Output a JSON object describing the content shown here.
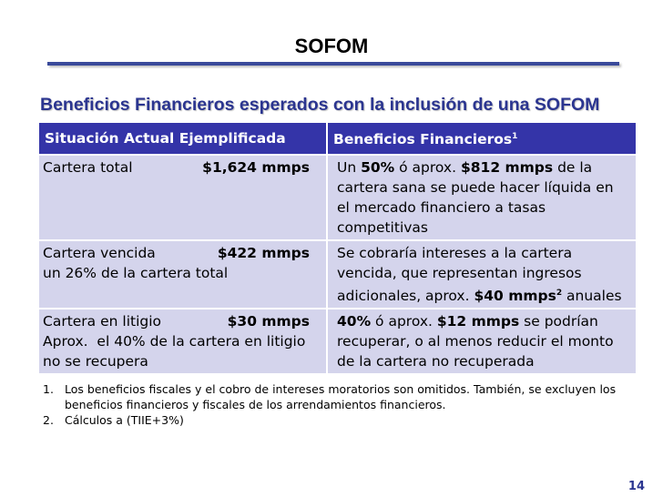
{
  "slide": {
    "title": "SOFOM",
    "subtitle": "Beneficios Financieros esperados con la inclusión de una SOFOM",
    "page_number": "14",
    "accent_color": "#3434a8",
    "cell_color": "#d4d4ec"
  },
  "table": {
    "headers": {
      "col1": "Situación Actual Ejemplificada",
      "col2": "Beneficios Financieros",
      "col2_sup": "1"
    },
    "rows": [
      {
        "label": "Cartera total",
        "amount": "$1,624 mmps",
        "benefit": {
          "p1": "Un ",
          "b1": "50%",
          "p2": " ó aprox. ",
          "b2": "$812 mmps",
          "p3": " de la cartera sana se puede hacer líquida en el mercado financiero a tasas competitivas"
        }
      },
      {
        "label": "Cartera vencida",
        "amount": "$422 mmps",
        "desc": "un 26% de la cartera total",
        "benefit": {
          "p1": "Se cobraría intereses a la cartera vencida, que representan ingresos adicionales, aprox. ",
          "b1": "$40 mmps",
          "sup": "2",
          "p2": " anuales"
        }
      },
      {
        "label": "Cartera en litigio",
        "amount": "$30 mmps",
        "desc": "Aprox.  el 40% de la cartera en litigio no se recupera",
        "benefit": {
          "b1": "40%",
          "p1": " ó aprox. ",
          "b2": "$12 mmps",
          "p2": " se podrían recuperar, o al menos reducir el monto de la cartera no recuperada"
        }
      }
    ]
  },
  "notes": [
    {
      "num": "1.",
      "text": "Los beneficios fiscales y el cobro de intereses moratorios son omitidos. También, se excluyen los beneficios financieros y fiscales de los arrendamientos financieros."
    },
    {
      "num": "2.",
      "text": "Cálculos a (TIIE+3%)"
    }
  ]
}
